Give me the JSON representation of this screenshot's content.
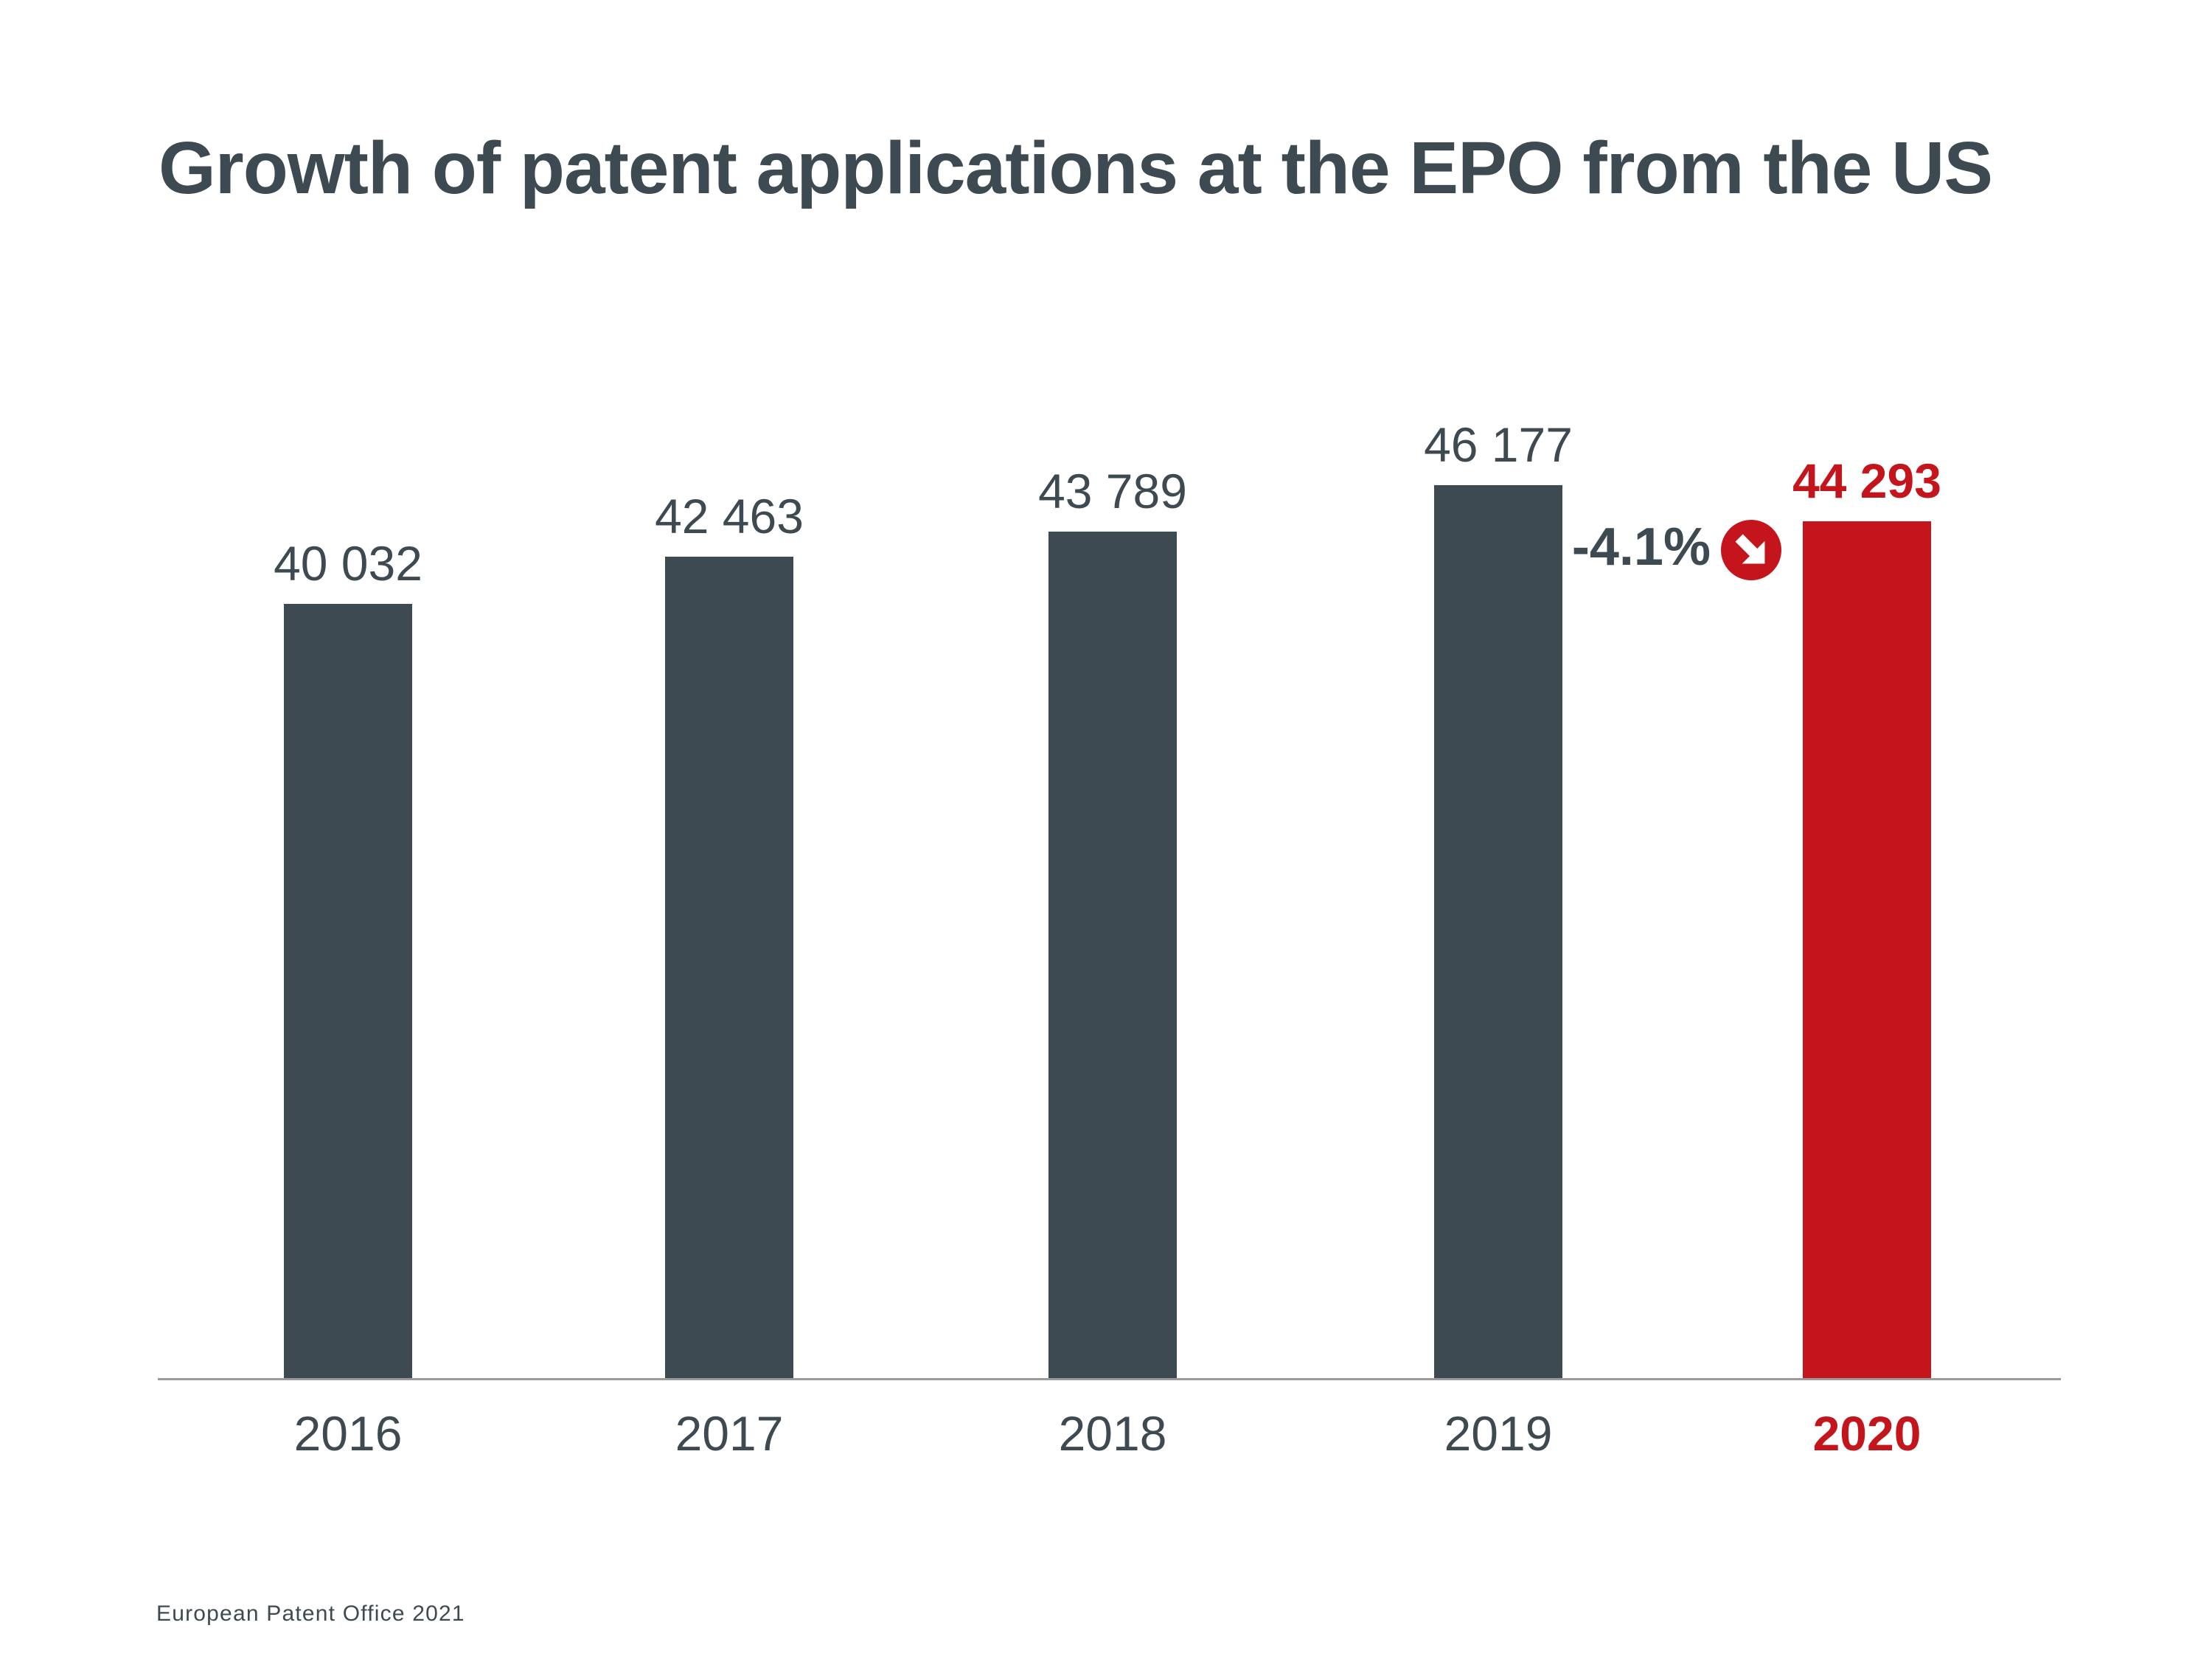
{
  "slide": {
    "title": "Growth of patent applications at the EPO from the US",
    "source": "European Patent Office 2021"
  },
  "colors": {
    "bar": "#3E4A52",
    "highlight": "#C5151C",
    "text": "#3E4A52",
    "axis": "#9B9B9B",
    "icon_arrow": "#FFFFFF"
  },
  "chart_data": {
    "type": "bar",
    "title": "Growth of patent applications at the EPO from the US",
    "categories": [
      "2016",
      "2017",
      "2018",
      "2019",
      "2020"
    ],
    "values": [
      40032,
      42463,
      43789,
      46177,
      44293
    ],
    "value_labels": [
      "40 032",
      "42 463",
      "43 789",
      "46 177",
      "44 293"
    ],
    "highlight_index": 4,
    "bar_color": "#3E4A52",
    "highlight_color": "#C5151C",
    "label_color": "#3E4A52",
    "annotation": {
      "label": "-4.1%",
      "icon": "arrow-down-right-circle-icon",
      "applies_to": "2020"
    },
    "xlabel": "",
    "ylabel": "",
    "ylim": [
      0,
      46177
    ],
    "grid": false,
    "legend": false,
    "source": "European Patent Office 2021"
  }
}
